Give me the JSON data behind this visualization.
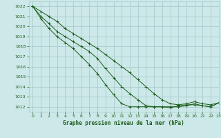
{
  "title": "Graphe pression niveau de la mer (hPa)",
  "bg_color": "#cce8e8",
  "grid_color": "#aacccc",
  "line_color": "#1a5c1a",
  "xlim": [
    -0.5,
    23
  ],
  "ylim": [
    1011.5,
    1022.5
  ],
  "yticks": [
    1012,
    1013,
    1014,
    1015,
    1016,
    1017,
    1018,
    1019,
    1020,
    1021,
    1022
  ],
  "xticks": [
    0,
    1,
    2,
    3,
    4,
    5,
    6,
    7,
    8,
    9,
    10,
    11,
    12,
    13,
    14,
    15,
    16,
    17,
    18,
    19,
    20,
    21,
    22,
    23
  ],
  "series": [
    [
      1022.0,
      1021.5,
      1021.0,
      1020.5,
      1019.8,
      1019.3,
      1018.8,
      1018.3,
      1017.8,
      1017.2,
      1016.6,
      1016.0,
      1015.4,
      1014.7,
      1014.0,
      1013.3,
      1012.7,
      1012.3,
      1012.2,
      1012.3,
      1012.5,
      1012.3,
      1012.2,
      1012.4
    ],
    [
      1022.0,
      1021.0,
      1020.3,
      1019.5,
      1019.0,
      1018.5,
      1018.0,
      1017.5,
      1016.8,
      1015.8,
      1014.9,
      1014.0,
      1013.3,
      1012.7,
      1012.1,
      1012.0,
      1012.0,
      1012.0,
      1012.0,
      1012.1,
      1012.3,
      1012.1,
      1012.0,
      1012.4
    ],
    [
      1022.0,
      1020.8,
      1019.8,
      1019.0,
      1018.4,
      1017.8,
      1017.0,
      1016.2,
      1015.3,
      1014.2,
      1013.2,
      1012.3,
      1012.0,
      1012.0,
      1012.0,
      1012.0,
      1012.0,
      1011.9,
      1012.1,
      1012.2,
      1012.2,
      1012.1,
      1012.0,
      1012.4
    ]
  ]
}
